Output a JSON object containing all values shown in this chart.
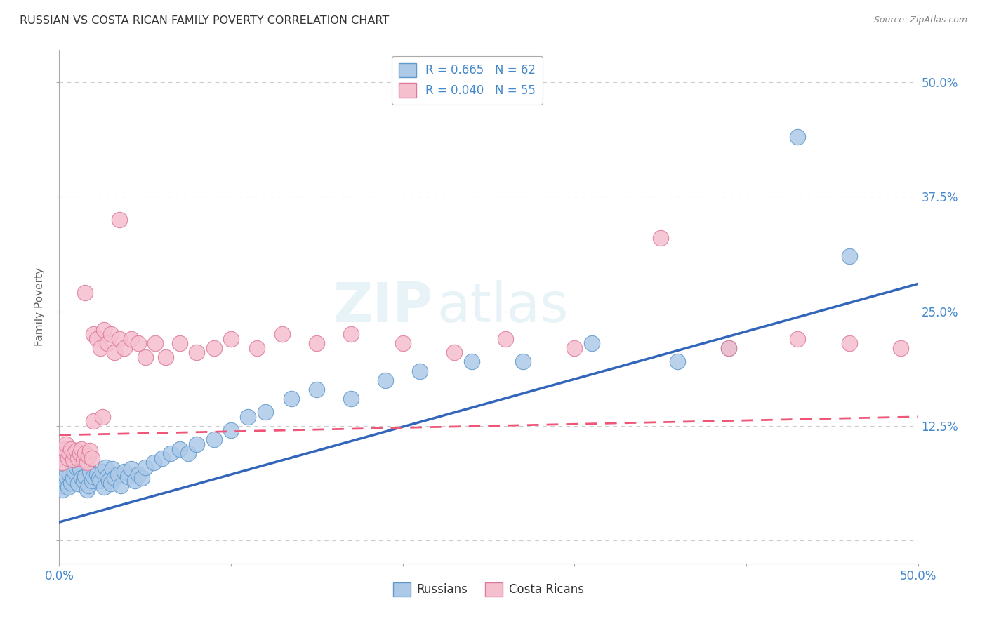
{
  "title": "RUSSIAN VS COSTA RICAN FAMILY POVERTY CORRELATION CHART",
  "source": "Source: ZipAtlas.com",
  "ylabel": "Family Poverty",
  "xmin": 0.0,
  "xmax": 0.5,
  "ymin": -0.025,
  "ymax": 0.535,
  "russian_color": "#adc9e8",
  "costarican_color": "#f5bfce",
  "russian_edge": "#5e99cc",
  "costarican_edge": "#dd7799",
  "trendline_russian_color": "#3366bb",
  "trendline_costarican_color": "#ee5577",
  "watermark_zip": "ZIP",
  "watermark_atlas": "atlas",
  "background_color": "#ffffff",
  "grid_color": "#cccccc",
  "title_color": "#333333",
  "axis_label_color": "#4488cc",
  "russians_x": [
    0.001,
    0.002,
    0.003,
    0.004,
    0.005,
    0.006,
    0.007,
    0.008,
    0.009,
    0.01,
    0.011,
    0.012,
    0.013,
    0.014,
    0.015,
    0.016,
    0.017,
    0.018,
    0.019,
    0.02,
    0.022,
    0.023,
    0.024,
    0.025,
    0.026,
    0.027,
    0.028,
    0.029,
    0.03,
    0.031,
    0.032,
    0.034,
    0.036,
    0.038,
    0.04,
    0.042,
    0.044,
    0.046,
    0.048,
    0.05,
    0.055,
    0.06,
    0.065,
    0.07,
    0.075,
    0.08,
    0.09,
    0.1,
    0.11,
    0.12,
    0.135,
    0.15,
    0.17,
    0.19,
    0.21,
    0.24,
    0.27,
    0.31,
    0.36,
    0.39,
    0.43,
    0.46
  ],
  "russians_y": [
    0.06,
    0.055,
    0.065,
    0.07,
    0.058,
    0.072,
    0.063,
    0.068,
    0.075,
    0.08,
    0.062,
    0.078,
    0.068,
    0.065,
    0.07,
    0.055,
    0.06,
    0.075,
    0.065,
    0.07,
    0.072,
    0.068,
    0.065,
    0.075,
    0.058,
    0.08,
    0.07,
    0.065,
    0.062,
    0.078,
    0.068,
    0.072,
    0.06,
    0.075,
    0.07,
    0.078,
    0.065,
    0.072,
    0.068,
    0.08,
    0.085,
    0.09,
    0.095,
    0.1,
    0.095,
    0.105,
    0.11,
    0.12,
    0.135,
    0.14,
    0.155,
    0.165,
    0.155,
    0.175,
    0.185,
    0.195,
    0.195,
    0.215,
    0.195,
    0.21,
    0.44,
    0.31
  ],
  "costaricans_x": [
    0.0,
    0.001,
    0.002,
    0.003,
    0.004,
    0.005,
    0.006,
    0.007,
    0.008,
    0.009,
    0.01,
    0.011,
    0.012,
    0.013,
    0.014,
    0.015,
    0.016,
    0.017,
    0.018,
    0.019,
    0.02,
    0.022,
    0.024,
    0.026,
    0.028,
    0.03,
    0.032,
    0.035,
    0.038,
    0.042,
    0.046,
    0.05,
    0.056,
    0.062,
    0.07,
    0.08,
    0.09,
    0.1,
    0.115,
    0.13,
    0.15,
    0.17,
    0.2,
    0.23,
    0.26,
    0.3,
    0.35,
    0.39,
    0.43,
    0.46,
    0.49,
    0.02,
    0.025,
    0.015,
    0.035
  ],
  "costaricans_y": [
    0.09,
    0.095,
    0.085,
    0.1,
    0.105,
    0.09,
    0.095,
    0.1,
    0.088,
    0.095,
    0.098,
    0.09,
    0.095,
    0.1,
    0.088,
    0.095,
    0.085,
    0.092,
    0.098,
    0.09,
    0.225,
    0.22,
    0.21,
    0.23,
    0.215,
    0.225,
    0.205,
    0.22,
    0.21,
    0.22,
    0.215,
    0.2,
    0.215,
    0.2,
    0.215,
    0.205,
    0.21,
    0.22,
    0.21,
    0.225,
    0.215,
    0.225,
    0.215,
    0.205,
    0.22,
    0.21,
    0.33,
    0.21,
    0.22,
    0.215,
    0.21,
    0.13,
    0.135,
    0.27,
    0.35
  ]
}
